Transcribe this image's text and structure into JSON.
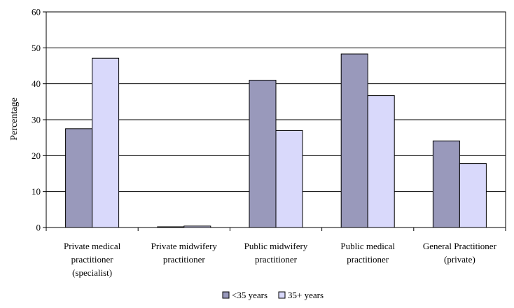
{
  "chart_data": {
    "type": "bar",
    "title": "",
    "xlabel": "",
    "ylabel": "Percentage",
    "ylim": [
      0,
      60
    ],
    "yticks": [
      0,
      10,
      20,
      30,
      40,
      50,
      60
    ],
    "grid": true,
    "legend_position": "bottom",
    "categories": [
      [
        "Private medical",
        "practitioner",
        "(specialist)"
      ],
      [
        "Private midwifery",
        "practitioner"
      ],
      [
        "Public midwifery",
        "practitioner"
      ],
      [
        "Public medical",
        "practitioner"
      ],
      [
        "General Practitioner",
        "(private)"
      ]
    ],
    "series": [
      {
        "name": "<35 years",
        "color": "#9999bb",
        "values": [
          27.5,
          0.2,
          41.0,
          48.3,
          24.1
        ]
      },
      {
        "name": "35+ years",
        "color": "#d9d9fb",
        "values": [
          47.1,
          0.4,
          27.0,
          36.7,
          17.8
        ]
      }
    ]
  }
}
